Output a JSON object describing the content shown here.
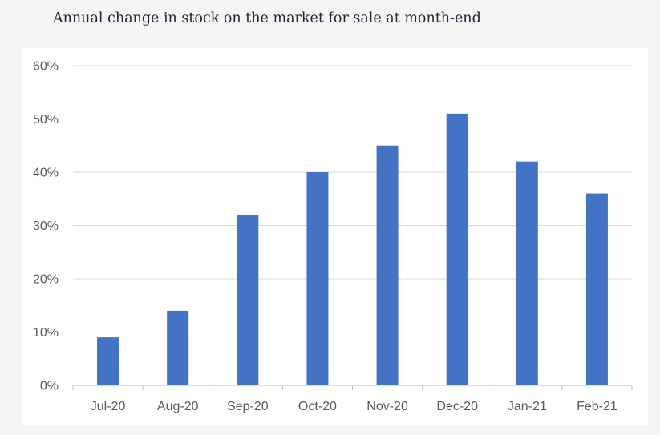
{
  "title": "Annual change in stock on the market for sale at month-end",
  "colors": {
    "bar": "#4472c4",
    "gridline": "#d9d9d9",
    "axis": "#bfbfbf",
    "tick_text": "#595959",
    "background": "#f5f5f5",
    "plot_background": "#ffffff"
  },
  "chart_data": {
    "type": "bar",
    "title": "Annual change in stock on the market for sale at month-end",
    "xlabel": "",
    "ylabel": "",
    "categories": [
      "Jul-20",
      "Aug-20",
      "Sep-20",
      "Oct-20",
      "Nov-20",
      "Dec-20",
      "Jan-21",
      "Feb-21"
    ],
    "values": [
      9,
      14,
      32,
      40,
      45,
      51,
      42,
      36
    ],
    "value_unit": "%",
    "ylim": [
      0,
      60
    ],
    "yticks": [
      0,
      10,
      20,
      30,
      40,
      50,
      60
    ],
    "ytick_labels": [
      "0%",
      "10%",
      "20%",
      "30%",
      "40%",
      "50%",
      "60%"
    ],
    "grid": true,
    "legend": "none"
  }
}
